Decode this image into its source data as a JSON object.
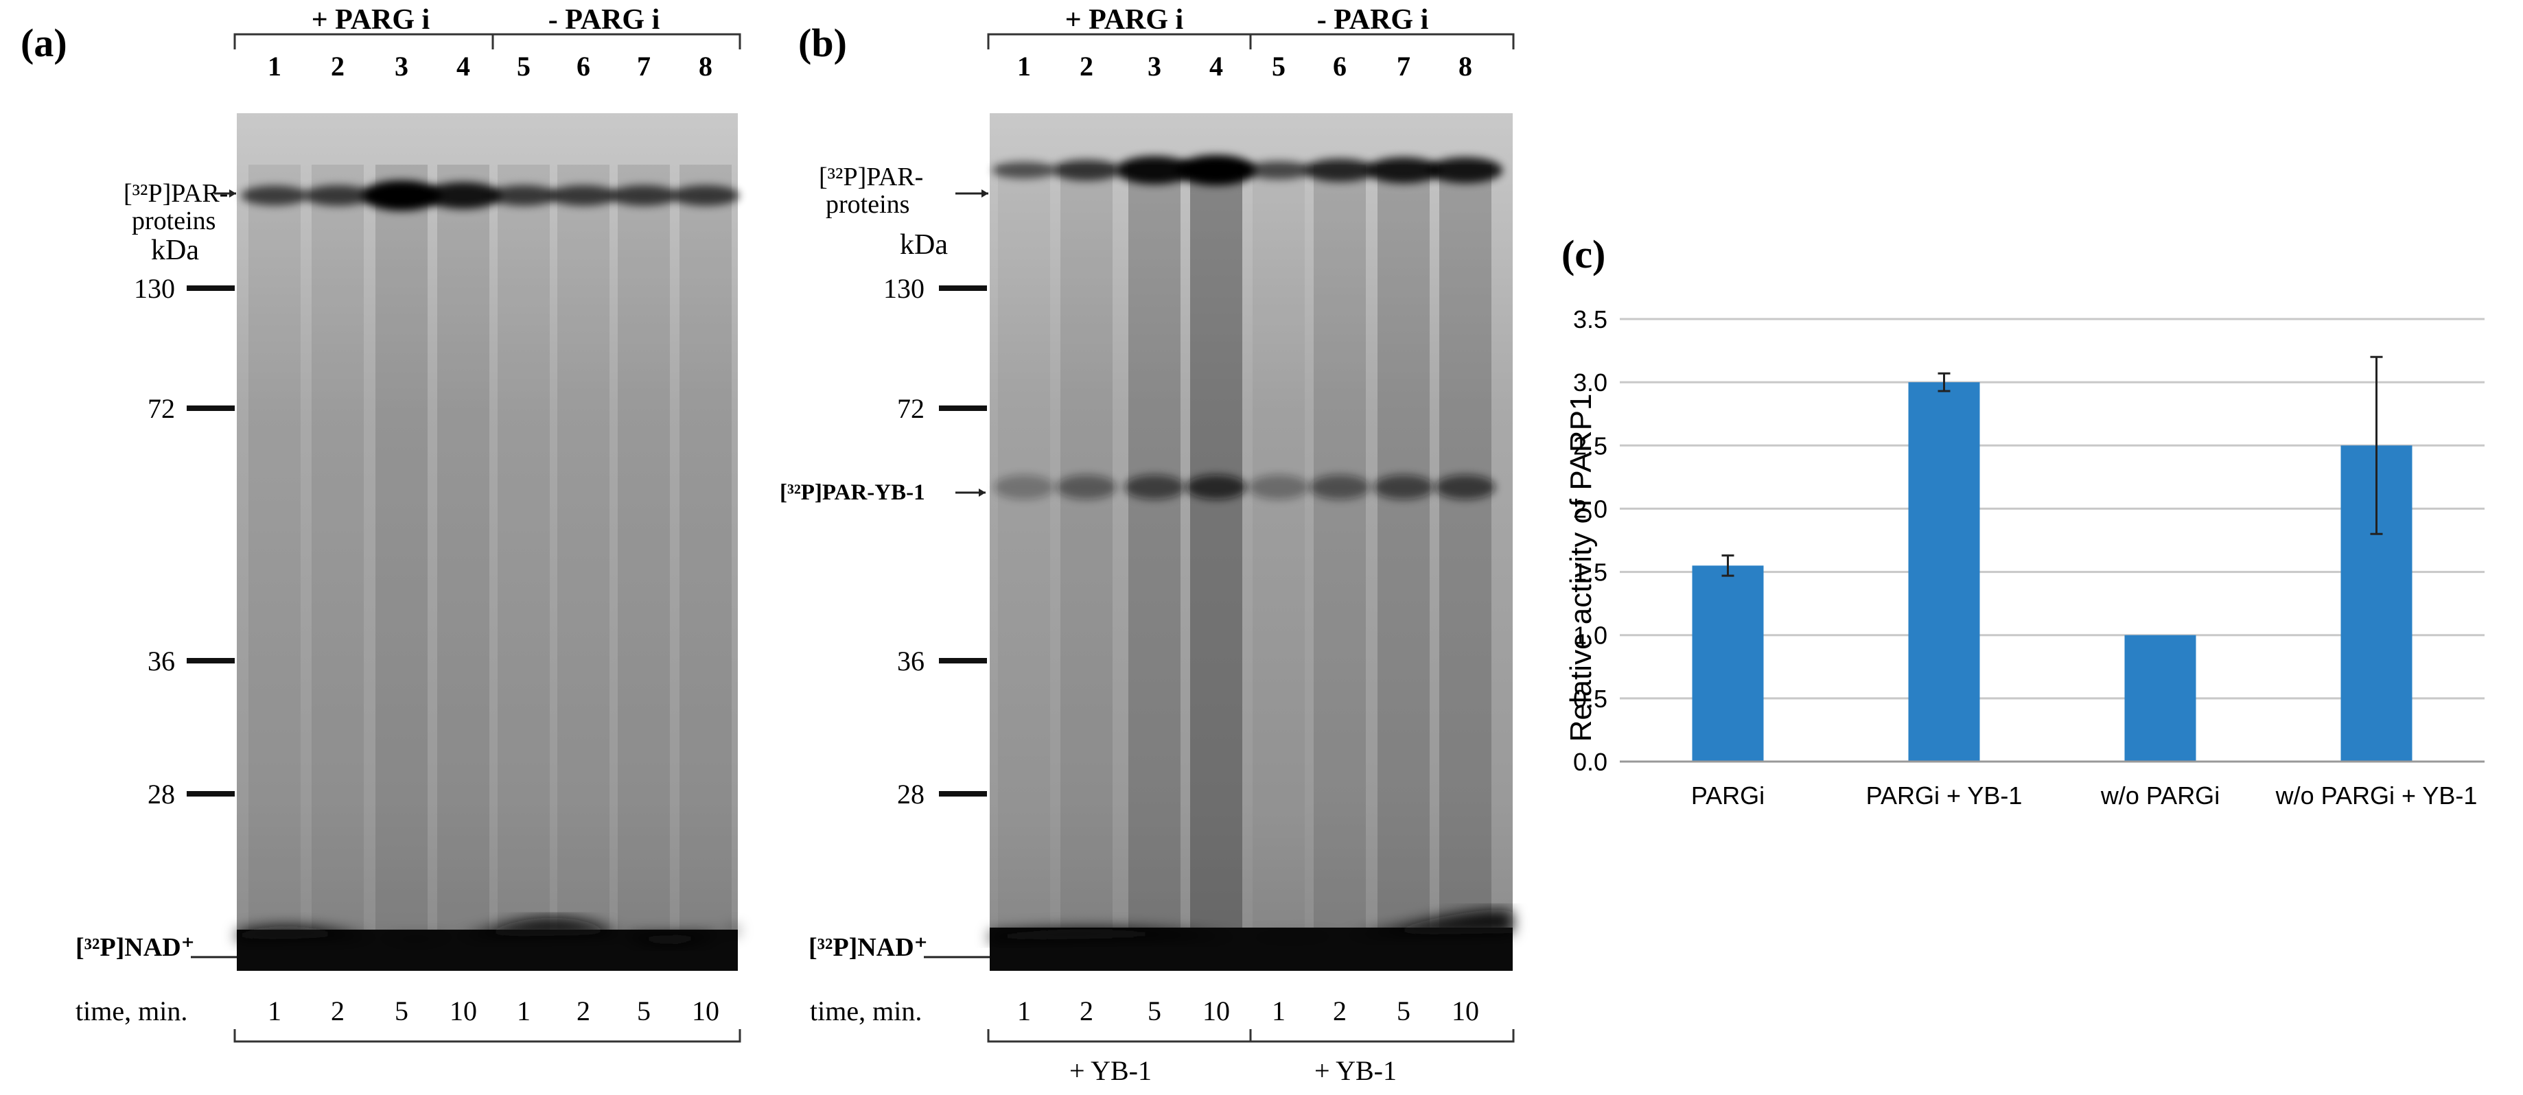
{
  "panel_a": {
    "label": "(a)",
    "group_left": "+ PARG i",
    "group_right": "- PARG i",
    "lanes": [
      "1",
      "2",
      "3",
      "4",
      "5",
      "6",
      "7",
      "8"
    ],
    "par_label_1": "[³²P]PAR-",
    "par_label_2": "proteins",
    "kda": "kDa",
    "markers": [
      "130",
      "72",
      "36",
      "28"
    ],
    "nad_label": "[³²P]NAD⁺",
    "time_label": "time, min.",
    "times": [
      "1",
      "2",
      "5",
      "10",
      "1",
      "2",
      "5",
      "10"
    ]
  },
  "panel_b": {
    "label": "(b)",
    "group_left": "+ PARG i",
    "group_right": "- PARG i",
    "lanes": [
      "1",
      "2",
      "3",
      "4",
      "5",
      "6",
      "7",
      "8"
    ],
    "par_label_1": "[³²P]PAR-",
    "par_label_2": "proteins",
    "kda": "kDa",
    "markers": [
      "130",
      "72",
      "36",
      "28"
    ],
    "yb1_band_label": "[³²P]PAR-YB-1",
    "nad_label": "[³²P]NAD⁺",
    "time_label": "time, min.",
    "times": [
      "1",
      "2",
      "5",
      "10",
      "1",
      "2",
      "5",
      "10"
    ],
    "bottom_left": "+ YB-1",
    "bottom_right": "+ YB-1"
  },
  "panel_c": {
    "label": "(c)",
    "chart_data": {
      "type": "bar",
      "categories": [
        "PARGi",
        "PARGi + YB-1",
        "w/o PARGi",
        "w/o PARGi + YB-1"
      ],
      "values": [
        1.55,
        3.0,
        1.0,
        2.5
      ],
      "errors": [
        0.08,
        0.07,
        0.0,
        0.7
      ],
      "ylabel": "Relative activity of PARP1",
      "xlabel": "",
      "ylim": [
        0,
        3.5
      ],
      "yticks": [
        "0.0",
        "0.5",
        "1.0",
        "1.5",
        "2.0",
        "2.5",
        "3.0",
        "3.5"
      ],
      "grid": true,
      "bar_color": "#2a80c5"
    }
  }
}
